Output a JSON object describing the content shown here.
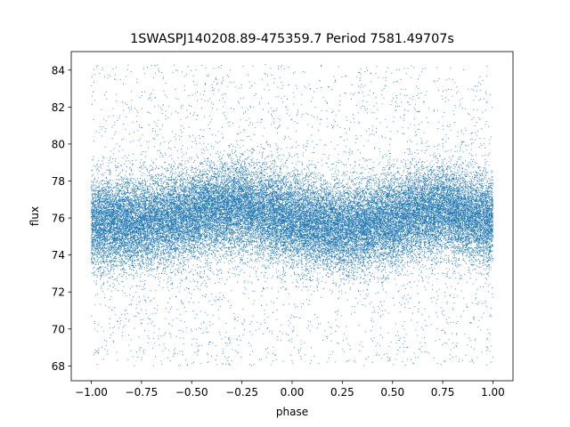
{
  "chart_data": {
    "type": "scatter",
    "title": "1SWASPJ140208.89-475359.7 Period 7581.49707s",
    "xlabel": "phase",
    "ylabel": "flux",
    "xlim": [
      -1.1,
      1.1
    ],
    "ylim": [
      67.2,
      85.0
    ],
    "x_ticks": [
      -1.0,
      -0.75,
      -0.5,
      -0.25,
      0.0,
      0.25,
      0.5,
      0.75,
      1.0
    ],
    "x_tick_labels": [
      "−1.00",
      "−0.75",
      "−0.50",
      "−0.25",
      "0.00",
      "0.25",
      "0.50",
      "0.75",
      "1.00"
    ],
    "y_ticks": [
      68,
      70,
      72,
      74,
      76,
      78,
      80,
      82,
      84
    ],
    "y_tick_labels": [
      "68",
      "70",
      "72",
      "74",
      "76",
      "78",
      "80",
      "82",
      "84"
    ],
    "grid": false,
    "legend": "none",
    "marker_color": "#1f77b4",
    "series": [
      {
        "phase_range": [
          -1.0,
          1.0
        ],
        "flux_range": [
          68.0,
          84.3
        ],
        "mean_flux_profile": {
          "phase": [
            -1.0,
            -0.75,
            -0.5,
            -0.25,
            0.0,
            0.25,
            0.5,
            0.75,
            1.0
          ],
          "flux": [
            75.8,
            75.7,
            76.2,
            76.6,
            75.9,
            75.4,
            75.9,
            76.5,
            75.8
          ]
        },
        "core_spread": 1.2,
        "approx_point_count": 40000
      }
    ]
  }
}
